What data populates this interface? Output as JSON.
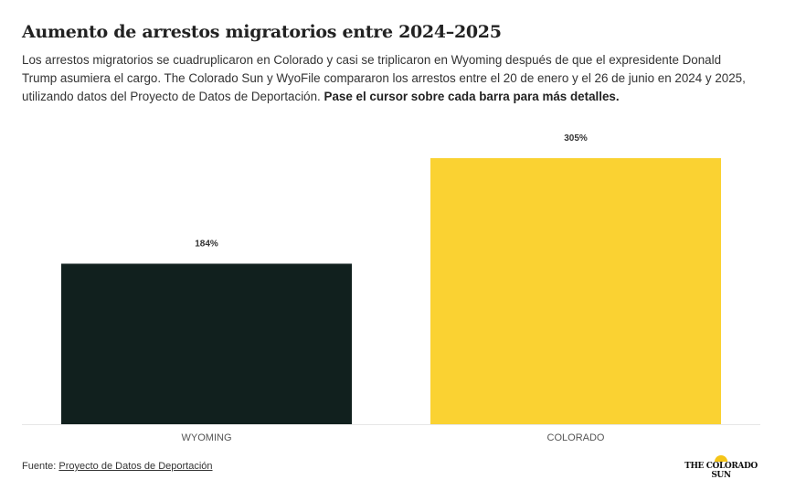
{
  "title": "Aumento de arrestos migratorios entre 2024–2025",
  "description": "Los arrestos migratorios se cuadruplicaron en Colorado y casi se triplicaron en Wyoming después de que el expresidente Donald Trump asumiera el cargo. The Colorado Sun y WyoFile compararon los arrestos entre el 20 de enero y el 26 de junio en 2024 y 2025, utilizando datos del Proyecto de Datos de Deportación.",
  "description_bold": "Pase el cursor sobre cada barra para más detalles.",
  "source_label": "Fuente:",
  "source_link": "Proyecto de Datos de Deportación",
  "logo": "THE COLORADO SUN",
  "chart_data": {
    "type": "bar",
    "title": "Aumento de arrestos migratorios entre 2024–2025",
    "categories": [
      "WYOMING",
      "COLORADO"
    ],
    "values": [
      184,
      305
    ],
    "data_labels": [
      "184%",
      "305%"
    ],
    "colors": [
      "#11201e",
      "#fad232"
    ],
    "xlabel": "",
    "ylabel": "",
    "ylim": [
      0,
      305
    ],
    "grid": false
  }
}
